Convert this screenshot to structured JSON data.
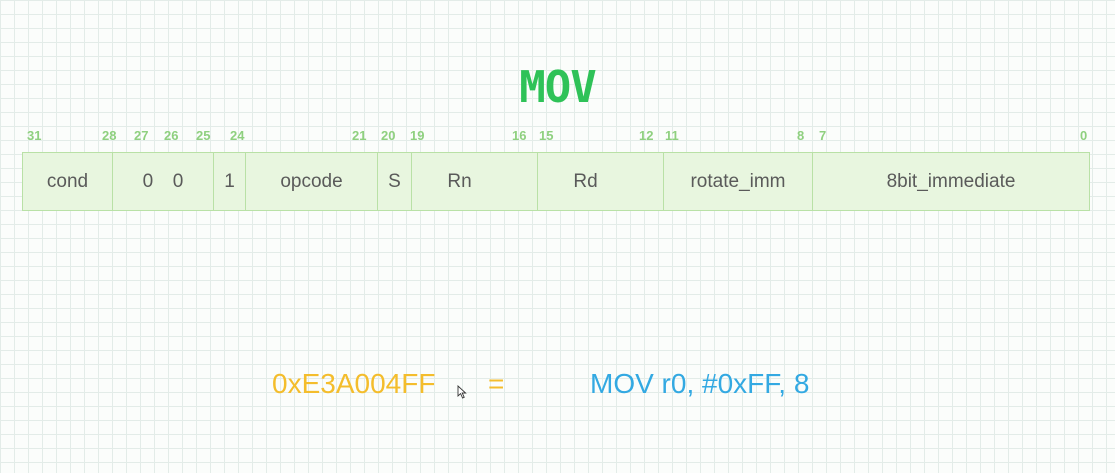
{
  "title": "MOV",
  "bit_positions": [
    "31",
    "28",
    "27",
    "26",
    "25",
    "24",
    "21",
    "20",
    "19",
    "16",
    "15",
    "12",
    "11",
    "8",
    "7",
    "0"
  ],
  "fields": [
    {
      "label": "cond"
    },
    {
      "label_a": "0",
      "label_b": "0"
    },
    {
      "label": "1"
    },
    {
      "label": "opcode"
    },
    {
      "label": "S"
    },
    {
      "label": "Rn"
    },
    {
      "label": "Rd"
    },
    {
      "label": "rotate_imm"
    },
    {
      "label": "8bit_immediate"
    }
  ],
  "example": {
    "hex": "0xE3A004FF",
    "equals": "=",
    "assembly": "MOV r0,  #0xFF, 8"
  },
  "colors": {
    "title": "#2fc258",
    "bit_numbers": "#8fd07f",
    "field_fill": "#e8f6df",
    "field_border": "#b9e1a6",
    "hex": "#f4bd2c",
    "assembly": "#33a9e2"
  }
}
